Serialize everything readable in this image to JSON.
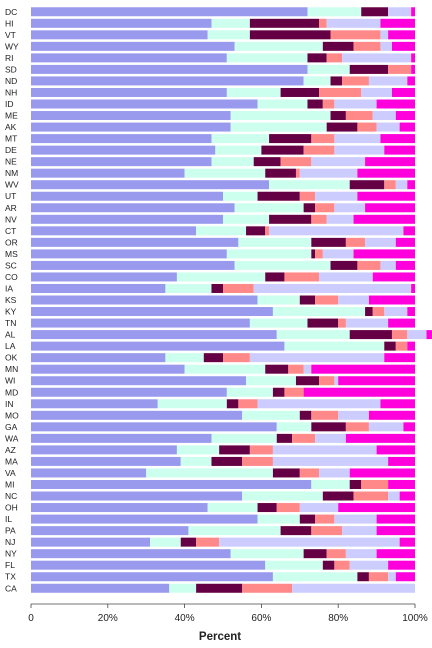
{
  "chart_data": {
    "type": "bar",
    "orientation": "horizontal",
    "stacked": true,
    "title": "",
    "xlabel": "Percent",
    "ylabel": "",
    "xlim": [
      0,
      100
    ],
    "xticks": [
      0,
      20,
      40,
      60,
      80,
      100
    ],
    "xtick_labels": [
      "0",
      "20%",
      "40%",
      "60%",
      "80%",
      "100%"
    ],
    "grid": false,
    "legend": "none",
    "colors": [
      "#9999ee",
      "#ccffee",
      "#660044",
      "#ff8888",
      "#ccccff",
      "#ff00dd"
    ],
    "categories": [
      "DC",
      "HI",
      "VT",
      "WY",
      "RI",
      "SD",
      "ND",
      "NH",
      "ID",
      "ME",
      "AK",
      "MT",
      "DE",
      "NE",
      "NM",
      "WV",
      "UT",
      "AR",
      "NV",
      "CT",
      "OR",
      "MS",
      "SC",
      "CO",
      "IA",
      "KS",
      "KY",
      "TN",
      "AL",
      "LA",
      "OK",
      "MN",
      "WI",
      "MD",
      "IN",
      "MO",
      "GA",
      "WA",
      "AZ",
      "MA",
      "VA",
      "MI",
      "NC",
      "OH",
      "IL",
      "PA",
      "NJ",
      "NY",
      "FL",
      "TX",
      "CA"
    ],
    "series": [
      {
        "values": [
          72,
          47,
          46,
          53,
          51,
          72,
          71,
          51,
          59,
          52,
          52,
          47,
          48,
          47,
          40,
          62,
          50,
          53,
          50,
          43,
          54,
          51,
          53,
          38,
          35,
          59,
          63,
          57,
          64,
          66,
          35,
          40,
          56,
          51,
          33,
          55,
          64,
          47,
          38,
          39,
          30,
          73,
          55,
          46,
          59,
          41,
          31,
          52,
          61,
          63,
          36
        ]
      },
      {
        "values": [
          14,
          10,
          11,
          23,
          21,
          11,
          7,
          14,
          13,
          26,
          25,
          15,
          12,
          11,
          21,
          21,
          9,
          18,
          12,
          13,
          19,
          22,
          25,
          23,
          12,
          11,
          24,
          15,
          19,
          26,
          10,
          21,
          13,
          12,
          18,
          15,
          9,
          17,
          11,
          8,
          33,
          10,
          21,
          13,
          11,
          24,
          8,
          19,
          15,
          22,
          7
        ]
      },
      {
        "values": [
          7,
          18,
          21,
          8,
          5,
          10,
          3,
          10,
          4,
          4,
          8,
          11,
          11,
          7,
          8,
          9,
          11,
          3,
          11,
          5,
          9,
          1,
          7,
          5,
          3,
          4,
          2,
          8,
          11,
          3,
          5,
          6,
          6,
          3,
          3,
          3,
          9,
          4,
          8,
          8,
          7,
          3,
          8,
          5,
          4,
          8,
          4,
          6,
          3,
          3,
          12
        ]
      },
      {
        "values": [
          0,
          2,
          13,
          7,
          4,
          6,
          7,
          11,
          3,
          7,
          5,
          6,
          8,
          8,
          1,
          3,
          4,
          5,
          4,
          1,
          5,
          2,
          6,
          9,
          8,
          6,
          3,
          2,
          4,
          3,
          7,
          4,
          4,
          5,
          5,
          7,
          6,
          6,
          6,
          8,
          5,
          7,
          9,
          6,
          5,
          8,
          6,
          5,
          4,
          5,
          13
        ]
      },
      {
        "values": [
          6,
          14,
          2,
          3,
          18,
          0,
          10,
          8,
          11,
          6,
          6,
          12,
          13,
          14,
          15,
          3,
          11,
          8,
          7,
          35,
          8,
          8,
          4,
          14,
          41,
          8,
          6,
          11,
          5,
          0,
          35,
          2,
          1,
          0,
          32,
          8,
          9,
          8,
          27,
          30,
          8,
          0,
          3,
          10,
          11,
          9,
          47,
          8,
          10,
          2,
          32
        ]
      },
      {
        "values": [
          1,
          9,
          7,
          6,
          1,
          1,
          2,
          6,
          10,
          5,
          4,
          9,
          8,
          13,
          15,
          2,
          15,
          13,
          16,
          3,
          5,
          16,
          5,
          11,
          1,
          12,
          2,
          7,
          7,
          2,
          8,
          27,
          20,
          29,
          9,
          12,
          3,
          18,
          10,
          7,
          17,
          7,
          4,
          20,
          10,
          10,
          4,
          10,
          7,
          5,
          0
        ]
      }
    ]
  }
}
